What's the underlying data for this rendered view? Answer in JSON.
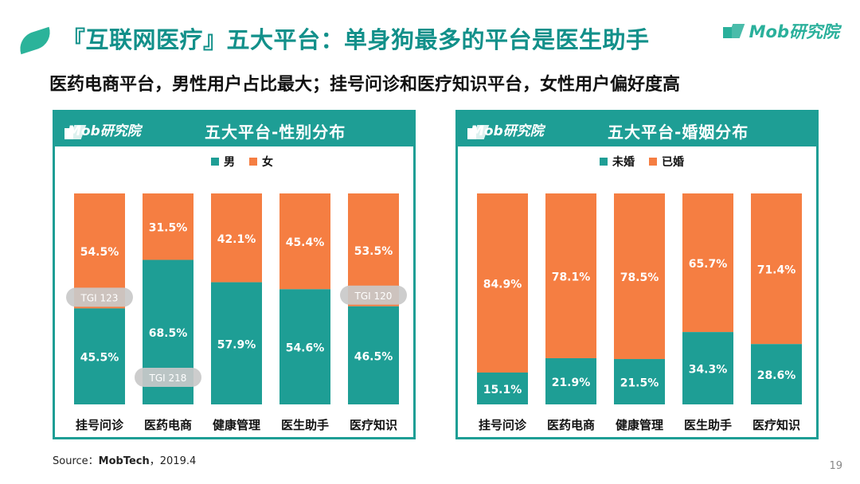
{
  "header": {
    "title": "『互联网医疗』五大平台：单身狗最多的平台是医生助手",
    "subtitle": "医药电商平台，男性用户占比最大；挂号问诊和医疗知识平台，女性用户偏好度高",
    "brand": "Mob研究院"
  },
  "colors": {
    "teal": "#1e9e95",
    "orange": "#f57e42",
    "tgi_badge": "#c9c9c9"
  },
  "chart_data": [
    {
      "type": "bar",
      "stacked": true,
      "title": "五大平台-性别分布",
      "categories": [
        "挂号问诊",
        "医药电商",
        "健康管理",
        "医生助手",
        "医疗知识"
      ],
      "series": [
        {
          "name": "男",
          "color": "#1e9e95",
          "values": [
            45.5,
            68.5,
            57.9,
            54.6,
            46.5
          ],
          "labels": [
            "45.5%",
            "68.5%",
            "57.9%",
            "54.6%",
            "46.5%"
          ]
        },
        {
          "name": "女",
          "color": "#f57e42",
          "values": [
            54.5,
            31.5,
            42.1,
            45.4,
            53.5
          ],
          "labels": [
            "54.5%",
            "31.5%",
            "42.1%",
            "45.4%",
            "53.5%"
          ]
        }
      ],
      "annotations": [
        {
          "category": "挂号问诊",
          "text": "TGI 123"
        },
        {
          "category": "医药电商",
          "text": "TGI 218"
        },
        {
          "category": "医疗知识",
          "text": "TGI 120"
        }
      ],
      "ylim": [
        0,
        100
      ],
      "grid": false,
      "legend": "top-center"
    },
    {
      "type": "bar",
      "stacked": true,
      "title": "五大平台-婚姻分布",
      "categories": [
        "挂号问诊",
        "医药电商",
        "健康管理",
        "医生助手",
        "医疗知识"
      ],
      "series": [
        {
          "name": "未婚",
          "color": "#1e9e95",
          "values": [
            15.1,
            21.9,
            21.5,
            34.3,
            28.6
          ],
          "labels": [
            "15.1%",
            "21.9%",
            "21.5%",
            "34.3%",
            "28.6%"
          ]
        },
        {
          "name": "已婚",
          "color": "#f57e42",
          "values": [
            84.9,
            78.1,
            78.5,
            65.7,
            71.4
          ],
          "labels": [
            "84.9%",
            "78.1%",
            "78.5%",
            "65.7%",
            "71.4%"
          ]
        }
      ],
      "ylim": [
        0,
        100
      ],
      "grid": false,
      "legend": "top-center"
    }
  ],
  "footer": {
    "source_prefix": "Source：",
    "source_name": "MobTech",
    "source_suffix": "，2019.4",
    "page_number": "19"
  }
}
